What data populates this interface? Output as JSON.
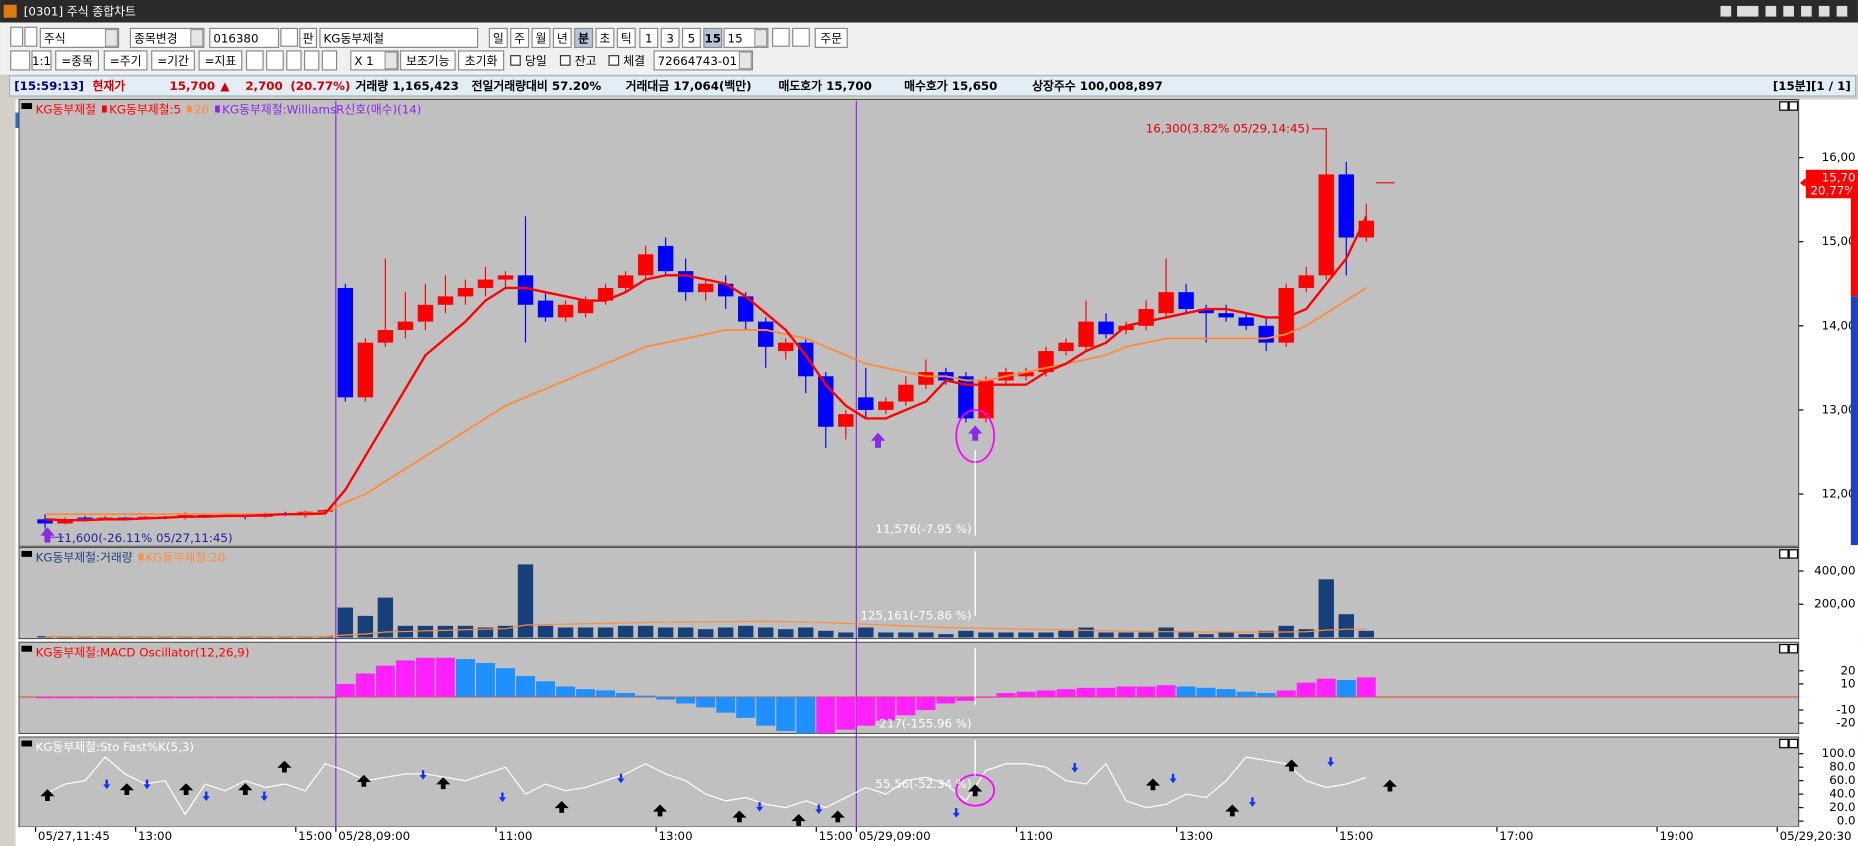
{
  "window": {
    "title": "[0301] 주식 종합차트"
  },
  "toolbar": {
    "row1": [
      "주식",
      "종목변경",
      "016380",
      "판",
      "KG동부제철",
      "일",
      "주",
      "월",
      "년",
      "분",
      "초",
      "틱",
      "1",
      "3",
      "5",
      "15",
      "15",
      "주문"
    ],
    "row2": [
      "1:1",
      "=종목",
      "=주기",
      "=기간",
      "=지표",
      "X 1",
      "보조기능",
      "초기화",
      "당일",
      "잔고",
      "체결",
      "72664743-01"
    ]
  },
  "info_bar": [
    "[15:59:13]",
    "현재가",
    "15,700",
    "▲",
    "2,700",
    "(20.77%)",
    "거래량 1,165,423",
    "전일거래량대비 57.20%",
    "거래대금 17,064(백만)",
    "매도호가 15,700",
    "매수호가 15,650",
    "상장주수 100,008,897",
    "[15분][1 / 1]"
  ],
  "chart": {
    "xlim": [
      -1.3,
      87.6
    ],
    "xticks": [
      {
        "value": 0,
        "label": "05/27,11:45"
      },
      {
        "value": 5,
        "label": "13:00"
      },
      {
        "value": 13,
        "label": "15:00"
      },
      {
        "value": 15,
        "label": "05/28,09:00"
      },
      {
        "value": 23,
        "label": "11:00"
      },
      {
        "value": 31,
        "label": "13:00"
      },
      {
        "value": 39,
        "label": "15:00"
      },
      {
        "value": 41,
        "label": "05/29,09:00"
      },
      {
        "value": 49,
        "label": "11:00"
      },
      {
        "value": 57,
        "label": "13:00"
      },
      {
        "value": 65,
        "label": "15:00"
      },
      {
        "value": 73,
        "label": "17:00"
      },
      {
        "value": 81,
        "label": "19:00"
      },
      {
        "value": 87,
        "label": "05/29,20:30"
      }
    ],
    "price": {
      "legend": [
        {
          "name": "KG동부제철",
          "color": "#ff0000"
        },
        {
          "name": "KG동부제철:5",
          "color": "#ff0000"
        },
        {
          "name": "20",
          "color": "#ff8c3c"
        },
        {
          "name": "KG동부제철:WilliamsR신호(매수)(14)",
          "color": "#8a2be2"
        }
      ],
      "ylim": [
        11394,
        16676
      ],
      "yticks": [
        {
          "value": 16000,
          "label": "16,00"
        },
        {
          "value": 15000,
          "label": "15,00"
        },
        {
          "value": 14000,
          "label": "14,00"
        },
        {
          "value": 13000,
          "label": "13,00"
        },
        {
          "value": 12000,
          "label": "12,00"
        }
      ],
      "current": {
        "value": 15700,
        "label": "15,70",
        "change": "( 20.77%"
      },
      "high_note": {
        "value": 16300,
        "label": "16,300(3.82% 05/29,14:45)"
      },
      "low_note": {
        "value": 11600,
        "label": "11,600(-26.11% 05/27,11:45)"
      },
      "cursor_label": "11,576(-7.95 %)",
      "candles": [
        [
          11700,
          11760,
          11600,
          11650
        ],
        [
          11650,
          11720,
          11640,
          11700
        ],
        [
          11720,
          11740,
          11690,
          11710
        ],
        [
          11710,
          11740,
          11690,
          11720
        ],
        [
          11720,
          11730,
          11700,
          11710
        ],
        [
          11710,
          11740,
          11700,
          11730
        ],
        [
          11730,
          11740,
          11700,
          11720
        ],
        [
          11720,
          11780,
          11700,
          11760
        ],
        [
          11760,
          11770,
          11720,
          11740
        ],
        [
          11740,
          11760,
          11730,
          11750
        ],
        [
          11750,
          11760,
          11700,
          11730
        ],
        [
          11730,
          11780,
          11720,
          11770
        ],
        [
          11770,
          11790,
          11740,
          11760
        ],
        [
          11760,
          11800,
          11720,
          11790
        ],
        [
          11790,
          11820,
          11760,
          11810
        ],
        [
          14450,
          14500,
          13100,
          13150
        ],
        [
          13150,
          13850,
          13100,
          13800
        ],
        [
          13800,
          14800,
          13750,
          13950
        ],
        [
          13950,
          14400,
          13850,
          14050
        ],
        [
          14050,
          14500,
          13950,
          14250
        ],
        [
          14250,
          14600,
          14150,
          14350
        ],
        [
          14350,
          14550,
          14250,
          14450
        ],
        [
          14450,
          14700,
          14350,
          14550
        ],
        [
          14550,
          14650,
          14450,
          14600
        ],
        [
          14600,
          15300,
          13800,
          14250
        ],
        [
          14300,
          14400,
          14050,
          14100
        ],
        [
          14100,
          14300,
          14050,
          14250
        ],
        [
          14150,
          14350,
          14100,
          14300
        ],
        [
          14300,
          14500,
          14250,
          14450
        ],
        [
          14450,
          14650,
          14400,
          14600
        ],
        [
          14600,
          14950,
          14550,
          14850
        ],
        [
          14950,
          15050,
          14600,
          14650
        ],
        [
          14650,
          14800,
          14300,
          14400
        ],
        [
          14400,
          14550,
          14300,
          14500
        ],
        [
          14500,
          14600,
          14200,
          14350
        ],
        [
          14350,
          14400,
          13950,
          14050
        ],
        [
          14050,
          14100,
          13500,
          13750
        ],
        [
          13700,
          13850,
          13600,
          13800
        ],
        [
          13800,
          13850,
          13200,
          13400
        ],
        [
          13400,
          13450,
          12550,
          12800
        ],
        [
          12800,
          13000,
          12650,
          12950
        ],
        [
          13150,
          13500,
          12900,
          13000
        ],
        [
          13000,
          13150,
          12950,
          13100
        ],
        [
          13100,
          13400,
          13050,
          13300
        ],
        [
          13300,
          13600,
          13250,
          13450
        ],
        [
          13450,
          13500,
          13300,
          13350
        ],
        [
          13400,
          13450,
          12850,
          12900
        ],
        [
          12900,
          13400,
          12850,
          13350
        ],
        [
          13350,
          13500,
          13300,
          13450
        ],
        [
          13400,
          13500,
          13350,
          13450
        ],
        [
          13450,
          13750,
          13400,
          13700
        ],
        [
          13700,
          13850,
          13650,
          13800
        ],
        [
          13750,
          14300,
          13700,
          14050
        ],
        [
          14050,
          14150,
          13850,
          13900
        ],
        [
          13950,
          14050,
          13900,
          14000
        ],
        [
          14000,
          14300,
          13950,
          14200
        ],
        [
          14150,
          14800,
          14100,
          14400
        ],
        [
          14400,
          14500,
          14150,
          14200
        ],
        [
          14200,
          14250,
          13800,
          14150
        ],
        [
          14150,
          14250,
          14050,
          14100
        ],
        [
          14100,
          14150,
          13950,
          14000
        ],
        [
          14000,
          14100,
          13700,
          13800
        ],
        [
          13800,
          14500,
          13750,
          14450
        ],
        [
          14450,
          14700,
          14400,
          14600
        ],
        [
          14600,
          16300,
          14550,
          15800
        ],
        [
          15800,
          15950,
          14600,
          15050
        ],
        [
          15050,
          15450,
          15000,
          15250
        ]
      ],
      "ma5": [
        11700,
        11690,
        11690,
        11700,
        11700,
        11710,
        11720,
        11730,
        11730,
        11740,
        11740,
        11750,
        11760,
        11760,
        11770,
        12050,
        12450,
        12850,
        13250,
        13650,
        13850,
        14050,
        14300,
        14450,
        14450,
        14400,
        14350,
        14300,
        14300,
        14400,
        14550,
        14600,
        14600,
        14550,
        14500,
        14350,
        14150,
        13950,
        13650,
        13300,
        13050,
        12900,
        12900,
        13000,
        13100,
        13350,
        13300,
        13300,
        13300,
        13300,
        13450,
        13550,
        13700,
        13800,
        14000,
        14050,
        14100,
        14150,
        14200,
        14200,
        14150,
        14100,
        14100,
        14200,
        14500,
        14800,
        15300
      ],
      "ma20": [
        11760,
        11760,
        11760,
        11760,
        11760,
        11760,
        11760,
        11760,
        11760,
        11760,
        11760,
        11760,
        11760,
        11770,
        11780,
        11900,
        12000,
        12150,
        12300,
        12450,
        12600,
        12750,
        12900,
        13050,
        13150,
        13250,
        13350,
        13450,
        13550,
        13650,
        13750,
        13800,
        13850,
        13900,
        13950,
        13950,
        13950,
        13900,
        13850,
        13750,
        13650,
        13550,
        13500,
        13450,
        13400,
        13400,
        13350,
        13350,
        13400,
        13450,
        13500,
        13550,
        13600,
        13650,
        13750,
        13800,
        13850,
        13850,
        13850,
        13850,
        13850,
        13850,
        13900,
        14000,
        14150,
        14300,
        14450
      ]
    },
    "volume": {
      "legend": [
        {
          "name": "KG동부제철:거래량",
          "color": "#1f3f7f"
        },
        {
          "name": "KG동부제철:20",
          "color": "#ff8c3c"
        }
      ],
      "ylim": [
        0,
        535000
      ],
      "yticks": [
        {
          "value": 400000,
          "label": "400,00"
        },
        {
          "value": 200000,
          "label": "200,00"
        }
      ],
      "cursor_label": "125,161(-75.86 %)",
      "values": [
        8000,
        5000,
        4000,
        4000,
        3000,
        5000,
        4000,
        6000,
        4000,
        5000,
        4000,
        6000,
        5000,
        6000,
        8000,
        180000,
        130000,
        240000,
        70000,
        70000,
        70000,
        70000,
        60000,
        70000,
        440000,
        70000,
        60000,
        60000,
        60000,
        70000,
        70000,
        60000,
        60000,
        50000,
        60000,
        70000,
        60000,
        50000,
        60000,
        40000,
        30000,
        60000,
        30000,
        30000,
        30000,
        20000,
        40000,
        30000,
        30000,
        30000,
        30000,
        40000,
        60000,
        30000,
        30000,
        30000,
        60000,
        30000,
        20000,
        30000,
        20000,
        40000,
        70000,
        50000,
        350000,
        140000,
        40000
      ],
      "ma20": [
        6000,
        6000,
        6000,
        6000,
        6000,
        6000,
        6000,
        6000,
        6000,
        6000,
        6000,
        6000,
        6000,
        6000,
        6000,
        15000,
        21000,
        33000,
        36000,
        40000,
        43000,
        47000,
        50000,
        53000,
        75000,
        78000,
        80000,
        83000,
        85000,
        88000,
        90000,
        92000,
        93000,
        94000,
        95000,
        96000,
        97000,
        95000,
        93000,
        90000,
        85000,
        80000,
        75000,
        70000,
        65000,
        60000,
        58000,
        55000,
        52000,
        50000,
        48000,
        45000,
        43000,
        40000,
        38000,
        36000,
        35000,
        34000,
        33000,
        33000,
        32000,
        32000,
        33000,
        34000,
        45000,
        50000,
        50000
      ]
    },
    "macd": {
      "legend": [
        {
          "name": "KG동부제철:MACD Oscillator(12,26,9)",
          "color": "#ff0000"
        }
      ],
      "ylim": [
        -27,
        41
      ],
      "yticks": [
        20,
        10,
        -10,
        -20
      ],
      "cursor_label": "-217(-155.96 %)",
      "values": [
        -1,
        -1,
        -1,
        -1,
        -1,
        -1,
        -1,
        -1,
        -1,
        -1,
        -1,
        -1,
        -1,
        -1,
        -1,
        10,
        18,
        24,
        28,
        30,
        30,
        29,
        26,
        22,
        16,
        12,
        8,
        6,
        5,
        3,
        1,
        -2,
        -5,
        -8,
        -12,
        -16,
        -22,
        -26,
        -28,
        -28,
        -25,
        -22,
        -18,
        -14,
        -10,
        -5,
        -3,
        0,
        3,
        4,
        5,
        6,
        7,
        7,
        8,
        8,
        9,
        8,
        7,
        6,
        4,
        3,
        5,
        11,
        14,
        13,
        15
      ]
    },
    "stochastic": {
      "legend": [
        {
          "name": "KG동부제철:Sto Fast%K(5,3)",
          "color": "#ffffff"
        }
      ],
      "ylim": [
        -7,
        123
      ],
      "yticks": [
        {
          "value": 100,
          "label": "100.0"
        },
        {
          "value": 80,
          "label": "80.0"
        },
        {
          "value": 60,
          "label": "60.0"
        },
        {
          "value": 40,
          "label": "40.0"
        },
        {
          "value": 20,
          "label": "20.0"
        },
        {
          "value": 0,
          "label": "0.0"
        }
      ],
      "cursor_label": "55.56(-52.34 %)",
      "values": [
        40,
        55,
        60,
        95,
        70,
        55,
        60,
        10,
        55,
        45,
        60,
        50,
        55,
        45,
        85,
        75,
        60,
        65,
        70,
        70,
        65,
        60,
        70,
        80,
        40,
        55,
        45,
        50,
        60,
        70,
        85,
        70,
        60,
        40,
        30,
        35,
        25,
        20,
        30,
        20,
        35,
        50,
        40,
        60,
        65,
        55,
        30,
        75,
        85,
        85,
        80,
        60,
        55,
        85,
        30,
        20,
        25,
        40,
        35,
        60,
        95,
        90,
        85,
        60,
        50,
        55,
        65
      ]
    }
  }
}
